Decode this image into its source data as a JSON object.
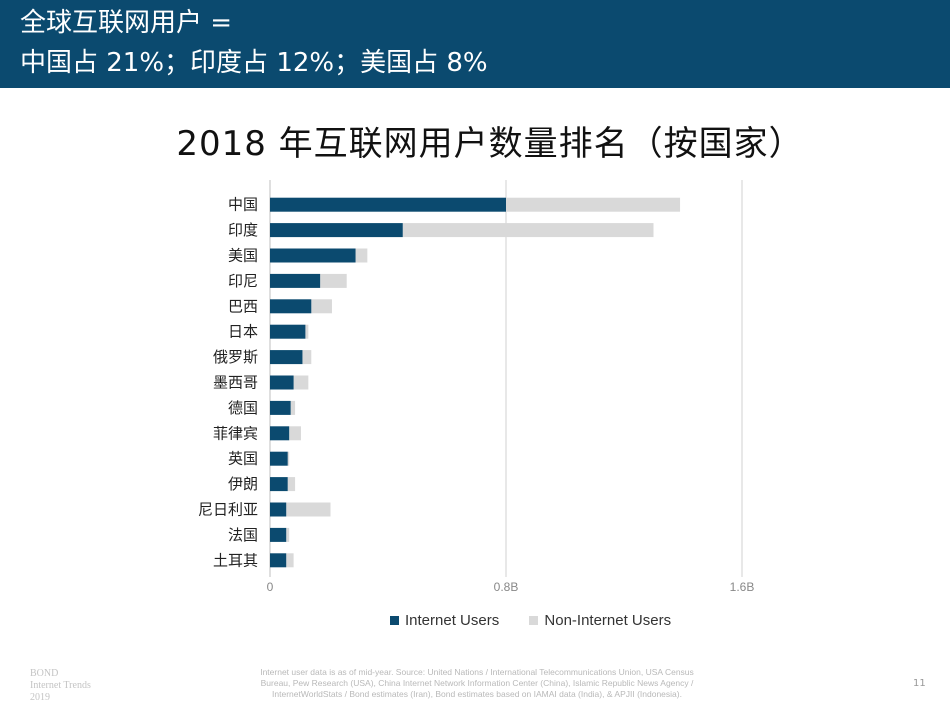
{
  "header": {
    "line1": "全球互联网用户 =",
    "line2": "中国占 21%；印度占 12%；美国占 8%"
  },
  "colors": {
    "header_bg": "#0b4a6f",
    "internet": "#0b4a6f",
    "non_internet": "#d9d9d9",
    "grid": "#d9d9d9"
  },
  "chart_data": {
    "type": "bar",
    "orientation": "horizontal",
    "stacked": true,
    "title": "2018 年互联网用户数量排名（按国家）",
    "categories": [
      "中国",
      "印度",
      "美国",
      "印尼",
      "巴西",
      "日本",
      "俄罗斯",
      "墨西哥",
      "德国",
      "菲律宾",
      "英国",
      "伊朗",
      "尼日利亚",
      "法国",
      "土耳其"
    ],
    "series": [
      {
        "name": "Internet Users",
        "values": [
          0.8,
          0.45,
          0.29,
          0.17,
          0.14,
          0.12,
          0.11,
          0.08,
          0.07,
          0.065,
          0.06,
          0.06,
          0.055,
          0.055,
          0.055
        ]
      },
      {
        "name": "Non-Internet Users",
        "values": [
          0.59,
          0.85,
          0.04,
          0.09,
          0.07,
          0.01,
          0.03,
          0.05,
          0.015,
          0.04,
          0.005,
          0.025,
          0.15,
          0.01,
          0.025
        ]
      }
    ],
    "x_ticks": [
      "0",
      "0.8B",
      "1.6B"
    ],
    "xlim": [
      0,
      1.6
    ],
    "grid": true,
    "legend": "bottom"
  },
  "footnote": {
    "line1": "Internet user data is as of mid-year. Source: United Nations / International Telecommunications Union, USA Census",
    "line2": "Bureau, Pew Research (USA), China Internet Network Information Center (China), Islamic Republic News Agency /",
    "line3": "InternetWorldStats / Bond estimates (Iran), Bond estimates based on IAMAI data (India), & APJII (Indonesia)."
  },
  "brand": {
    "line1": "BOND",
    "line2": "Internet Trends",
    "line3": "2019"
  },
  "page_number": "11"
}
